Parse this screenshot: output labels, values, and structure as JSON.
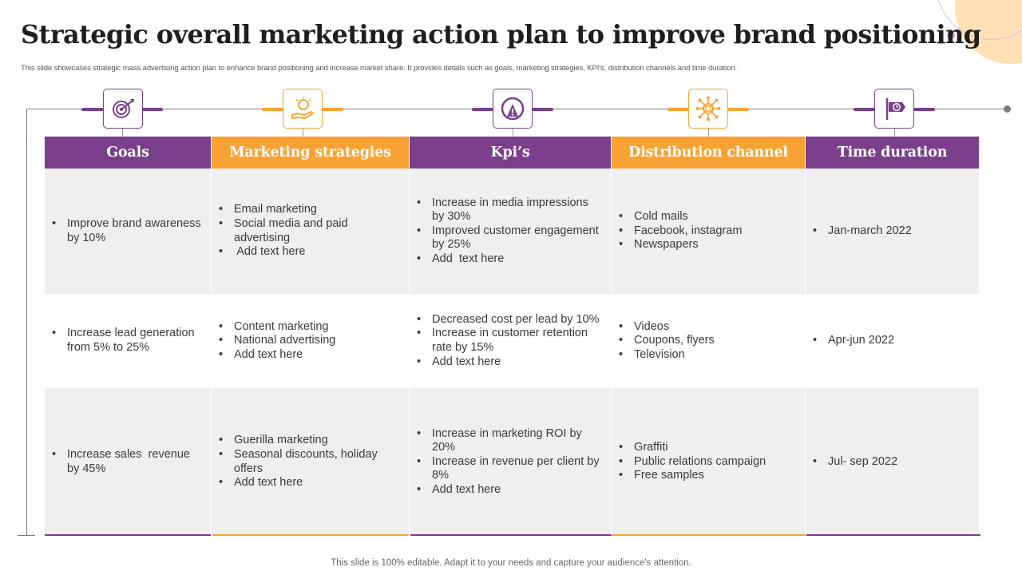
{
  "title": "Strategic overall marketing action plan to improve brand positioning",
  "subtitle": "This slide showcases strategic mass advertising action plan to enhance brand positioning and increase market share. It provides details such as goals, marketing strategies, KPI's,  distribution channels and time duration.",
  "footer": "This slide is 100% editable. Adapt it to your needs and capture your audience's attention.",
  "colors": {
    "purple": "#7a3f8c",
    "orange": "#f8a233",
    "grey_cell": "#efefef"
  },
  "columns": [
    {
      "label": "Goals",
      "icon": "target-icon",
      "color": "purple"
    },
    {
      "label": "Marketing strategies",
      "icon": "idea-hand-icon",
      "color": "orange"
    },
    {
      "label": "Kpi’s",
      "icon": "gauge-icon",
      "color": "purple"
    },
    {
      "label": "Distribution channel",
      "icon": "network-icon",
      "color": "orange"
    },
    {
      "label": "Time duration",
      "icon": "signpost-clock-icon",
      "color": "purple"
    }
  ],
  "rows": [
    {
      "goals": [
        "Improve brand awareness by 10%"
      ],
      "strategies": [
        "Email marketing",
        "Social media and paid advertising",
        " Add text here"
      ],
      "kpis": [
        "Increase in media impressions by 30%",
        "Improved customer engagement by 25%",
        "Add  text here"
      ],
      "channels": [
        "Cold mails",
        "Facebook, instagram",
        "Newspapers"
      ],
      "duration": [
        "Jan-march 2022"
      ]
    },
    {
      "goals": [
        "Increase lead generation from 5% to 25%"
      ],
      "strategies": [
        "Content marketing",
        "National advertising",
        "Add text here"
      ],
      "kpis": [
        "Decreased cost per lead by 10%",
        "Increase in customer retention rate by 15%",
        "Add text here"
      ],
      "channels": [
        "Videos",
        "Coupons, flyers",
        "Television"
      ],
      "duration": [
        "Apr-jun 2022"
      ]
    },
    {
      "goals": [
        "Increase sales  revenue by 45%"
      ],
      "strategies": [
        "Guerilla marketing",
        "Seasonal discounts, holiday offers",
        "Add text here"
      ],
      "kpis": [
        "Increase in marketing ROI by 20%",
        "Increase in revenue per client by 8%",
        "Add text here"
      ],
      "channels": [
        "Graffiti",
        "Public relations campaign",
        "Free samples"
      ],
      "duration": [
        "Jul- sep 2022"
      ]
    }
  ]
}
